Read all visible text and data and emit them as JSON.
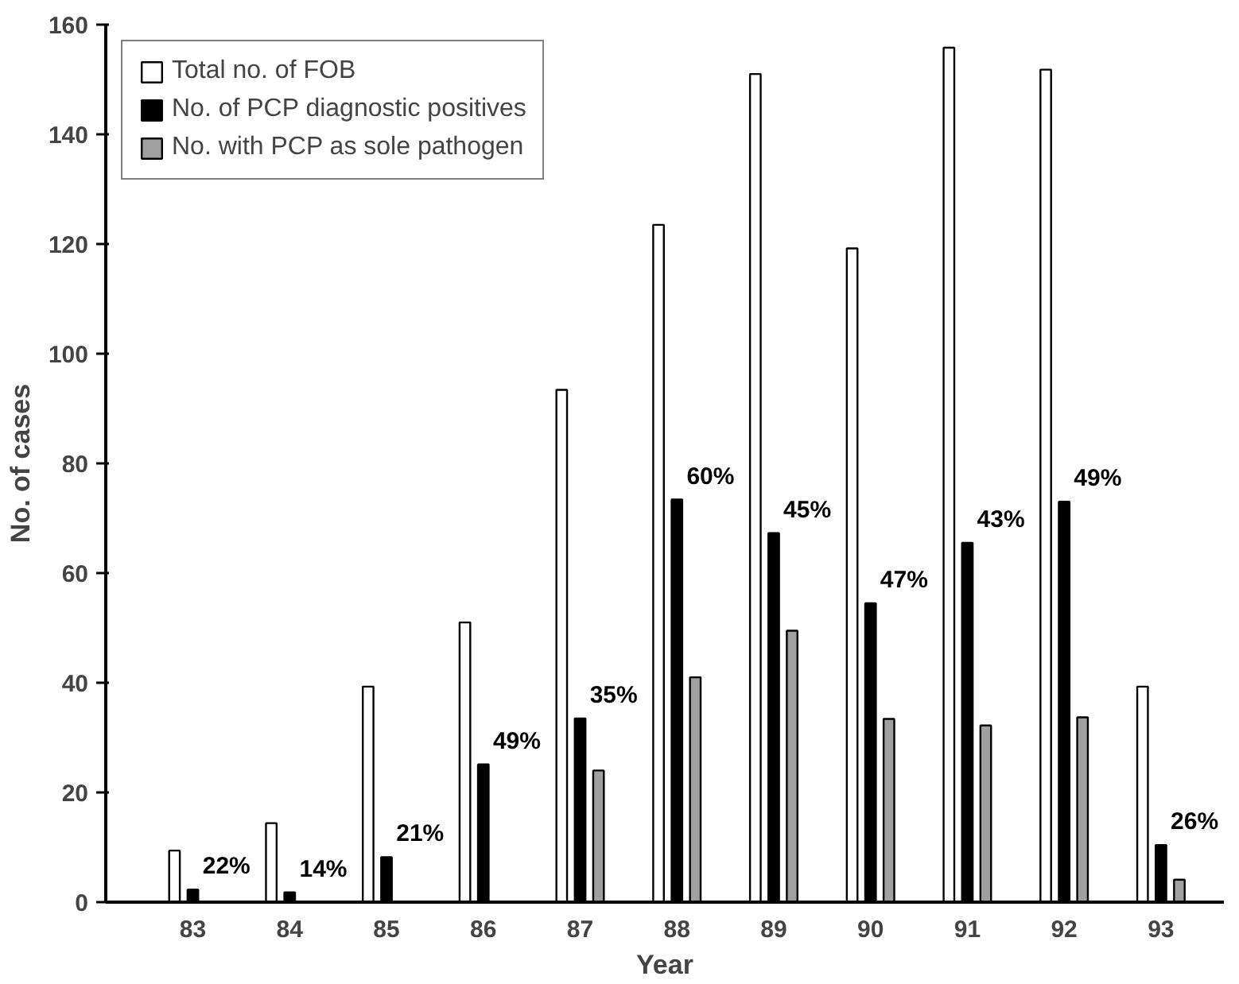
{
  "chart_data": {
    "type": "bar",
    "xlabel": "Year",
    "ylabel": "No. of cases",
    "categories": [
      "83",
      "84",
      "85",
      "86",
      "87",
      "88",
      "89",
      "90",
      "91",
      "92",
      "93"
    ],
    "series": [
      {
        "name": "Total no. of FOB",
        "color": "#ffffff",
        "values": [
          9.4,
          14.4,
          39.3,
          51,
          93.4,
          123.5,
          151,
          119.2,
          155.8,
          151.8,
          39.3
        ]
      },
      {
        "name": "No. of PCP diagnostic positives",
        "color": "#000000",
        "values": [
          2.3,
          1.8,
          8.2,
          25.1,
          33.5,
          73.4,
          67.3,
          54.5,
          65.5,
          73,
          10.4
        ]
      },
      {
        "name": "No. with PCP as sole pathogen",
        "color": "#a0a0a0",
        "values": [
          null,
          null,
          null,
          null,
          24,
          41,
          49.5,
          33.4,
          32.2,
          33.7,
          4.1
        ]
      }
    ],
    "annotations": [
      {
        "text": "22%",
        "x": "83",
        "y": 2.3
      },
      {
        "text": "14%",
        "x": "84",
        "y": 1.8
      },
      {
        "text": "21%",
        "x": "85",
        "y": 8.2
      },
      {
        "text": "49%",
        "x": "86",
        "y": 25.1
      },
      {
        "text": "35%",
        "x": "87",
        "y": 33.5
      },
      {
        "text": "60%",
        "x": "88",
        "y": 73.4
      },
      {
        "text": "45%",
        "x": "89",
        "y": 67.3
      },
      {
        "text": "47%",
        "x": "90",
        "y": 54.5
      },
      {
        "text": "43%",
        "x": "91",
        "y": 65.5
      },
      {
        "text": "49%",
        "x": "92",
        "y": 73
      },
      {
        "text": "26%",
        "x": "93",
        "y": 10.4
      }
    ],
    "ylim": [
      0,
      160
    ],
    "yticks": [
      0,
      20,
      40,
      60,
      80,
      100,
      120,
      140,
      160
    ],
    "grid": false,
    "legend": "top left"
  }
}
